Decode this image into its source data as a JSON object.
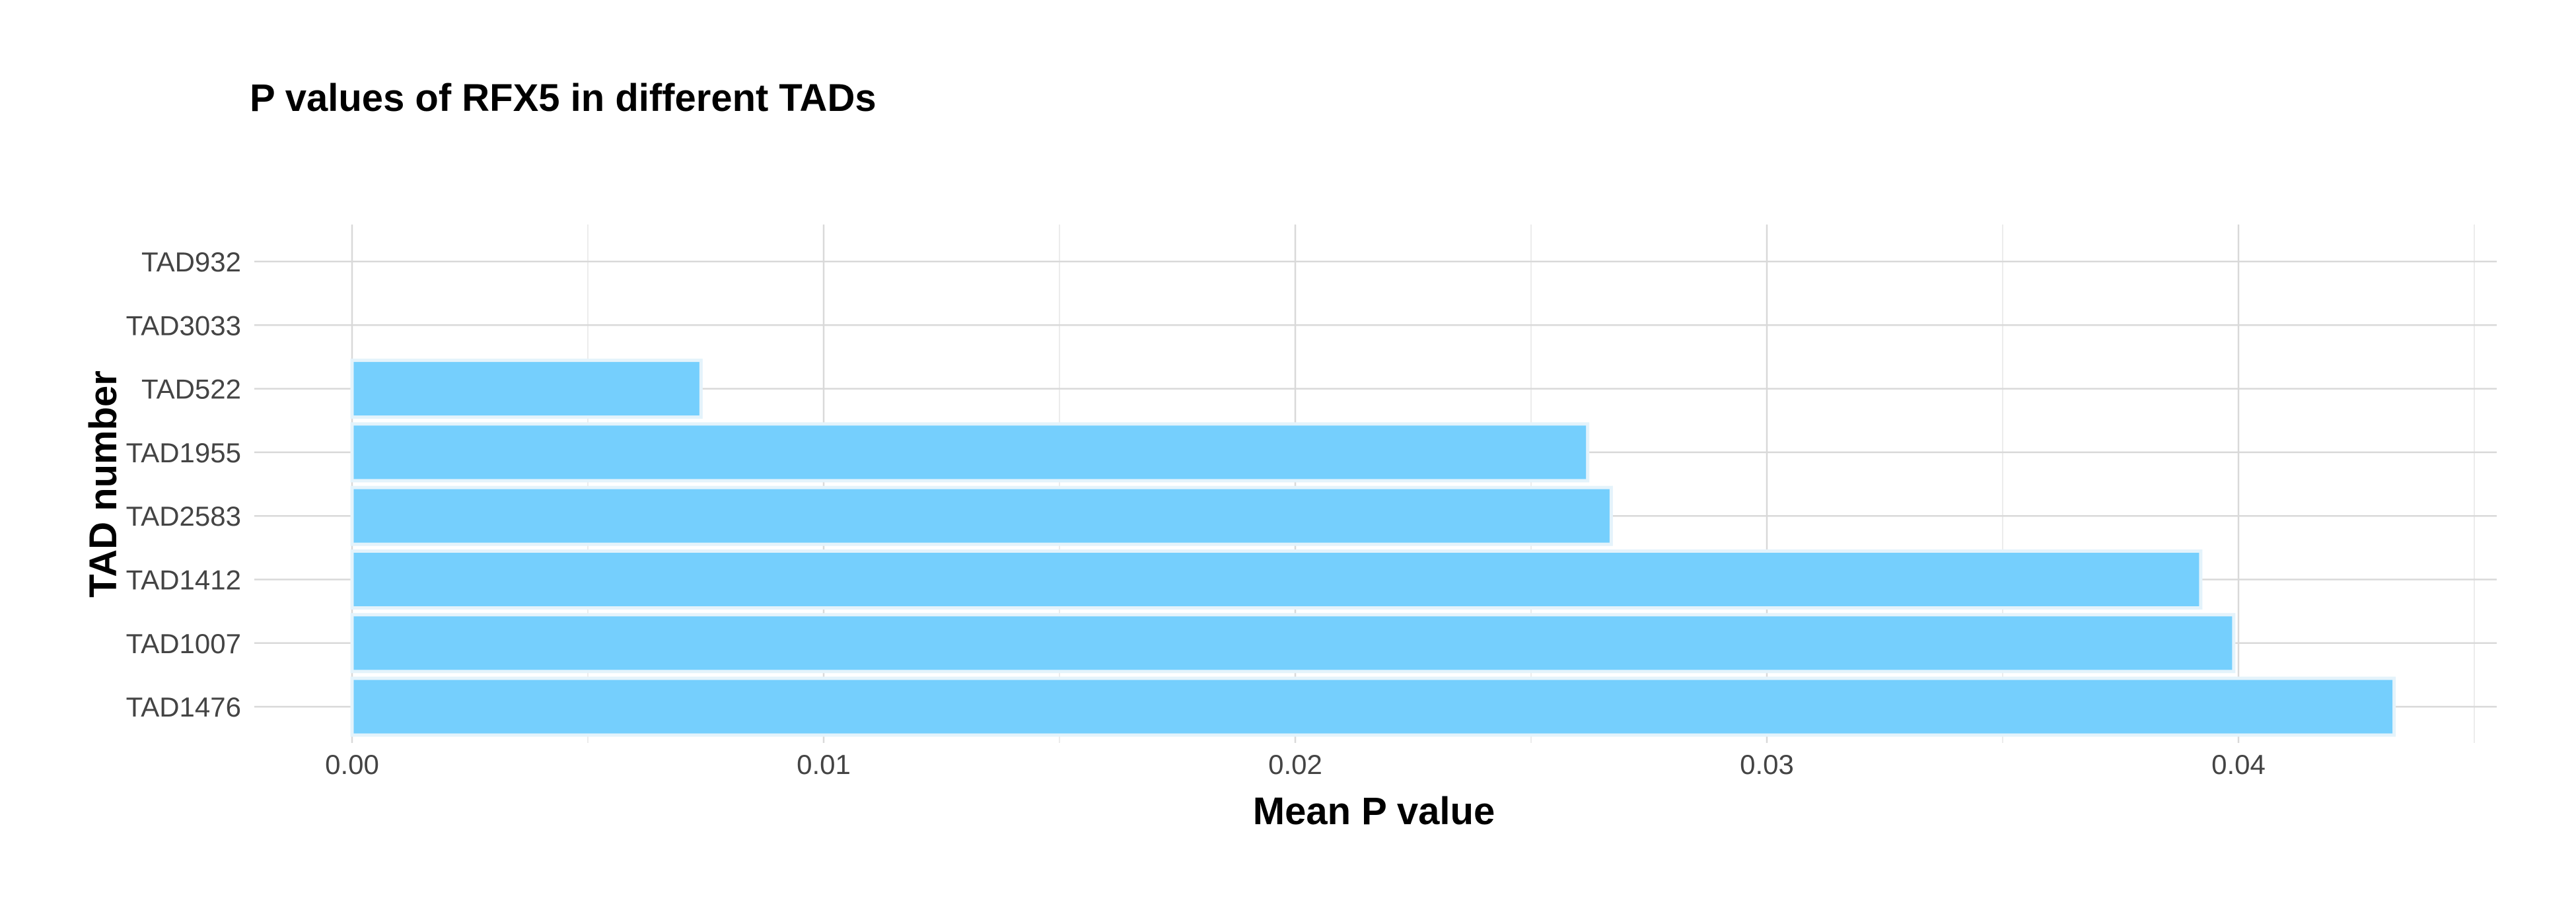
{
  "chart_data": {
    "type": "bar",
    "orientation": "horizontal",
    "title": "P values of RFX5 in different TADs",
    "xlabel": "Mean P value",
    "ylabel": "TAD number",
    "categories": [
      "TAD932",
      "TAD3033",
      "TAD522",
      "TAD1955",
      "TAD2583",
      "TAD1412",
      "TAD1007",
      "TAD1476"
    ],
    "values": [
      0,
      0,
      0.0074,
      0.0262,
      0.0267,
      0.0392,
      0.0399,
      0.0433
    ],
    "xlim": [
      0,
      0.045
    ],
    "xticks": [
      0,
      0.01,
      0.02,
      0.03,
      0.04
    ],
    "xtick_labels": [
      "0.00",
      "0.01",
      "0.02",
      "0.03",
      "0.04"
    ],
    "grid": true,
    "legend": "none",
    "colors": {
      "bar_fill": "#75cffd",
      "bar_stroke": "#e4f3fb",
      "grid_major": "#d9d9d9",
      "grid_minor": "#ececec",
      "text": "#000000",
      "tick_text": "#444444"
    }
  }
}
